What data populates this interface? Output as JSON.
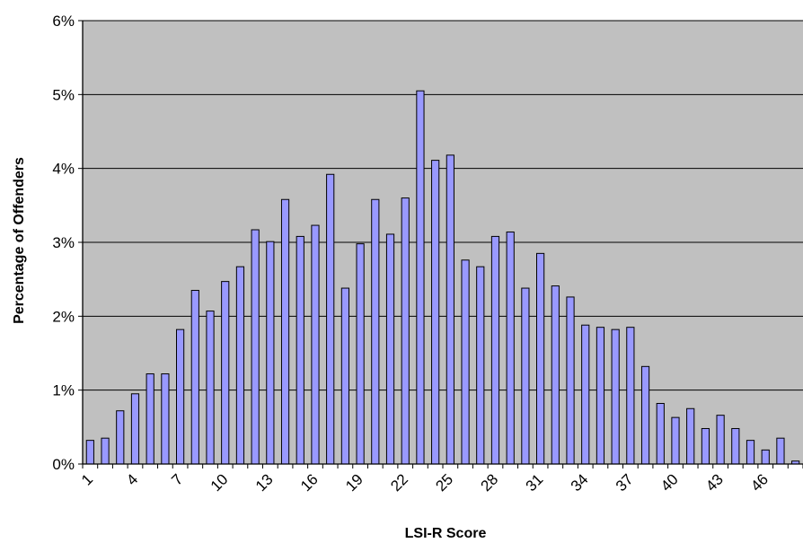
{
  "chart_data": {
    "type": "bar",
    "title": "",
    "xlabel": "LSI-R Score",
    "ylabel": "Percentage of Offenders",
    "x": [
      1,
      2,
      3,
      4,
      5,
      6,
      7,
      8,
      9,
      10,
      11,
      12,
      13,
      14,
      15,
      16,
      17,
      18,
      19,
      20,
      21,
      22,
      23,
      24,
      25,
      26,
      27,
      28,
      29,
      30,
      31,
      32,
      33,
      34,
      35,
      36,
      37,
      38,
      39,
      40,
      41,
      42,
      43,
      44,
      45,
      46,
      47,
      48
    ],
    "values": [
      0.32,
      0.35,
      0.72,
      0.95,
      1.22,
      1.22,
      1.82,
      2.35,
      2.07,
      2.47,
      2.67,
      3.17,
      3.01,
      3.58,
      3.08,
      3.23,
      3.92,
      2.38,
      2.98,
      3.58,
      3.11,
      3.6,
      5.05,
      4.11,
      4.18,
      2.76,
      2.67,
      3.08,
      3.14,
      2.38,
      2.85,
      2.41,
      2.26,
      1.88,
      1.85,
      1.82,
      1.85,
      1.32,
      0.82,
      0.63,
      0.75,
      0.48,
      0.66,
      0.48,
      0.32,
      0.19,
      0.35,
      0.04
    ],
    "x_tick_labels": [
      "1",
      "4",
      "7",
      "10",
      "13",
      "16",
      "19",
      "22",
      "25",
      "28",
      "31",
      "34",
      "37",
      "40",
      "43",
      "46"
    ],
    "y_tick_labels": [
      "0%",
      "1%",
      "2%",
      "3%",
      "4%",
      "5%",
      "6%"
    ],
    "ylim": [
      0,
      6
    ],
    "grid": true,
    "colors": {
      "plot_background": "#c0c0c0",
      "bar_fill": "#9999ff",
      "bar_stroke": "#000000",
      "gridline": "#000000"
    }
  }
}
